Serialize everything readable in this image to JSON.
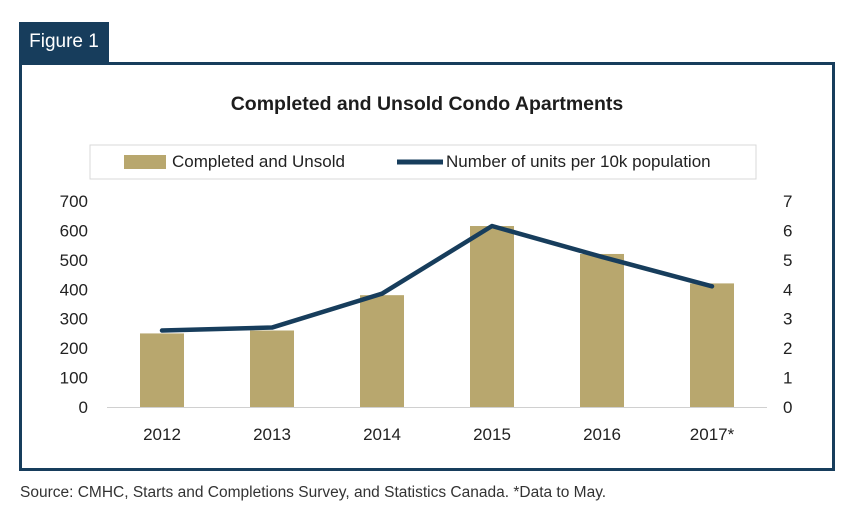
{
  "figure_label": "Figure 1",
  "source_note": "Source: CMHC, Starts and Completions Survey, and Statistics Canada. *Data to May.",
  "colors": {
    "frame": "#173d5c",
    "bar": "#b8a76e",
    "line": "#173d5c"
  },
  "chart_data": {
    "type": "bar",
    "title": "Completed and Unsold Condo Apartments",
    "categories": [
      "2012",
      "2013",
      "2014",
      "2015",
      "2016",
      "2017*"
    ],
    "series": [
      {
        "name": "Completed and Unsold",
        "type": "bar",
        "axis": "left",
        "values": [
          250,
          260,
          380,
          615,
          520,
          420
        ]
      },
      {
        "name": "Number of units per 10k population",
        "type": "line",
        "axis": "right",
        "values": [
          2.6,
          2.7,
          3.85,
          6.15,
          5.1,
          4.1
        ]
      }
    ],
    "y_left": {
      "range": [
        0,
        700
      ],
      "ticks": [
        "0",
        "100",
        "200",
        "300",
        "400",
        "500",
        "600",
        "700"
      ]
    },
    "y_right": {
      "range": [
        0,
        7
      ],
      "ticks": [
        "0",
        "1",
        "2",
        "3",
        "4",
        "5",
        "6",
        "7"
      ]
    },
    "legend_position": "top",
    "grid": false
  }
}
